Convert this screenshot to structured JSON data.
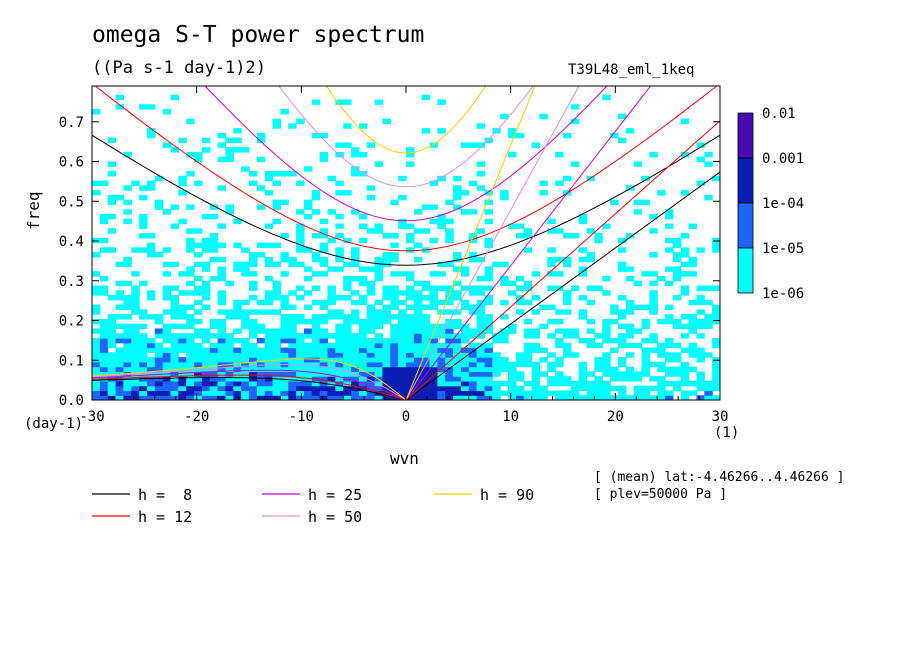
{
  "title": "omega S-T power spectrum",
  "units": "((Pa s-1 day-1)2)",
  "run_id": "T39L48_eml_1keq",
  "notes": {
    "mean": "[ (mean) lat:-4.46266..4.46266 ]",
    "plev": "[ plev=50000 Pa ]"
  },
  "chart_data": {
    "type": "heatmap",
    "title": "omega S-T power spectrum",
    "subtitle": "((Pa s-1 day-1)2)",
    "xlabel": "wvn",
    "xunit": "(1)",
    "ylabel": "freq",
    "yunit": "(day-1)",
    "xlim": [
      -30,
      30
    ],
    "ylim": [
      0,
      0.79
    ],
    "xticks": [
      -30,
      -20,
      -10,
      0,
      10,
      20,
      30
    ],
    "xtick_labels": [
      "-30",
      "-20",
      "-10",
      "0",
      "10",
      "20",
      "30"
    ],
    "yticks": [
      0.0,
      0.1,
      0.2,
      0.3,
      0.4,
      0.5,
      0.6,
      0.7
    ],
    "ytick_labels": [
      "0.0",
      "0.1",
      "0.2",
      "0.3",
      "0.4",
      "0.5",
      "0.6",
      "0.7"
    ],
    "colorbar": {
      "levels": [
        "0.01",
        "0.001",
        "1e-04",
        "1e-05",
        "1e-06"
      ],
      "colors": [
        "#4b0ab4",
        "#0a1eb4",
        "#1e64ff",
        "#00ffff"
      ]
    },
    "dispersion_curves": [
      {
        "name": "h =  8",
        "h": 8,
        "color": "#000000"
      },
      {
        "name": "h = 12",
        "h": 12,
        "color": "#ff0000"
      },
      {
        "name": "h = 25",
        "h": 25,
        "color": "#cc00cc"
      },
      {
        "name": "h = 50",
        "h": 50,
        "color": "#e08ce0"
      },
      {
        "name": "h = 90",
        "h": 90,
        "color": "#ffcc00"
      }
    ],
    "field_regions": [
      {
        "level": "1e-06",
        "x": [
          -30,
          10
        ],
        "y": [
          0.0,
          0.6
        ]
      },
      {
        "level": "1e-06",
        "x": [
          10,
          30
        ],
        "y": [
          0.0,
          0.3
        ]
      },
      {
        "level": "1e-05",
        "x": [
          -30,
          10
        ],
        "y": [
          0.0,
          0.25
        ]
      },
      {
        "level": "1e-05",
        "x": [
          -1,
          3
        ],
        "y": [
          0.0,
          0.06
        ]
      }
    ]
  }
}
